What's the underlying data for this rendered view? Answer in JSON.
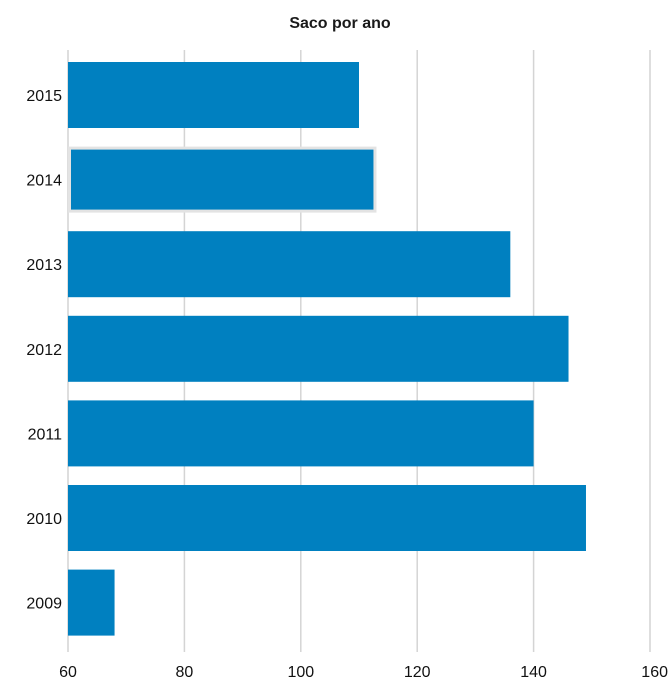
{
  "chart_data": {
    "type": "bar",
    "orientation": "horizontal",
    "title": "Saco por ano",
    "xlabel": "",
    "ylabel": "",
    "categories": [
      "2015",
      "2014",
      "2013",
      "2012",
      "2011",
      "2010",
      "2009"
    ],
    "values": [
      110,
      113,
      136,
      146,
      140,
      149,
      68
    ],
    "xlim": [
      60,
      160
    ],
    "xticks": [
      60,
      80,
      100,
      120,
      140,
      160
    ],
    "grid": true,
    "legend": "none",
    "highlighted_category": "2014",
    "colors": {
      "bar": "#0080c0",
      "highlight_outline": "#e3e3e3",
      "grid": "#d4d4d4",
      "text": "#111111"
    }
  }
}
